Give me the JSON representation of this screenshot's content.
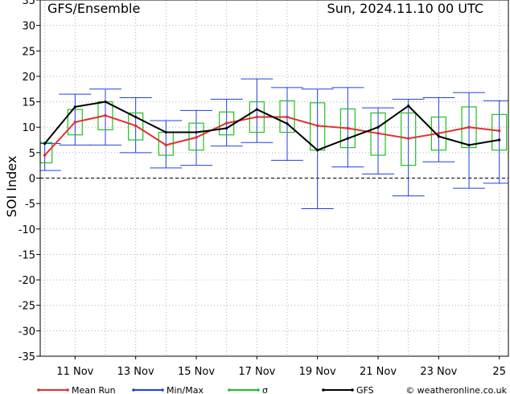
{
  "header": {
    "left_title": "GFS/Ensemble",
    "right_title": "Sun, 2024.11.10   00 UTC"
  },
  "footer": {
    "credit": "© weatheronline.co.uk"
  },
  "chart_data": {
    "type": "line",
    "ylabel": "SOI Index",
    "ylim": [
      -35,
      35
    ],
    "xlim": [
      9.85,
      25.3
    ],
    "y_ticks": [
      35,
      30,
      25,
      20,
      15,
      10,
      5,
      0,
      -5,
      -10,
      -15,
      -20,
      -25,
      -30,
      -35
    ],
    "x_ticks": [
      {
        "value": 11,
        "label": "11 Nov"
      },
      {
        "value": 13,
        "label": "13 Nov"
      },
      {
        "value": 15,
        "label": "15 Nov"
      },
      {
        "value": 17,
        "label": "17 Nov"
      },
      {
        "value": 19,
        "label": "19 Nov"
      },
      {
        "value": 21,
        "label": "21 Nov"
      },
      {
        "value": 23,
        "label": "23 Nov"
      },
      {
        "value": 25,
        "label": "25"
      }
    ],
    "grid": true,
    "zero_line": true,
    "x": [
      10,
      11,
      12,
      13,
      14,
      15,
      16,
      17,
      18,
      19,
      20,
      21,
      22,
      23,
      24,
      25
    ],
    "series": [
      {
        "name": "Mean Run",
        "color": "#e03030",
        "values": [
          4.5,
          11.0,
          12.3,
          10.3,
          6.5,
          8.0,
          10.8,
          12.0,
          12.0,
          10.3,
          9.8,
          8.8,
          7.8,
          8.8,
          10.0,
          9.3
        ]
      },
      {
        "name": "GFS",
        "color": "#000000",
        "values": [
          6.8,
          14.0,
          15.0,
          12.0,
          9.0,
          9.0,
          9.8,
          13.5,
          10.7,
          5.5,
          7.8,
          10.0,
          14.2,
          8.2,
          6.5,
          7.5
        ]
      },
      {
        "name": "Min/Max",
        "color": "#2040e0",
        "min": [
          1.5,
          6.5,
          6.5,
          5.0,
          2.0,
          2.5,
          6.3,
          7.0,
          3.5,
          -6.0,
          2.2,
          0.8,
          -3.5,
          3.2,
          -2.0,
          -1.0
        ],
        "max": [
          6.8,
          16.5,
          17.5,
          15.8,
          11.3,
          13.3,
          15.5,
          19.5,
          17.8,
          17.5,
          17.8,
          13.8,
          15.5,
          15.8,
          16.8,
          15.2
        ]
      },
      {
        "name": "σ",
        "color": "#20c020",
        "low": [
          3.0,
          8.5,
          9.5,
          7.5,
          4.5,
          5.5,
          8.5,
          9.0,
          9.0,
          5.5,
          6.0,
          4.5,
          2.5,
          5.5,
          6.0,
          5.5
        ],
        "high": [
          7.0,
          13.5,
          15.0,
          12.8,
          9.0,
          10.8,
          13.0,
          15.0,
          15.2,
          14.8,
          13.6,
          12.8,
          12.8,
          12.0,
          14.0,
          12.5
        ]
      }
    ],
    "legend": {
      "placement": "bottom",
      "entries": [
        "Mean Run",
        "Min/Max",
        "σ",
        "GFS"
      ]
    }
  }
}
